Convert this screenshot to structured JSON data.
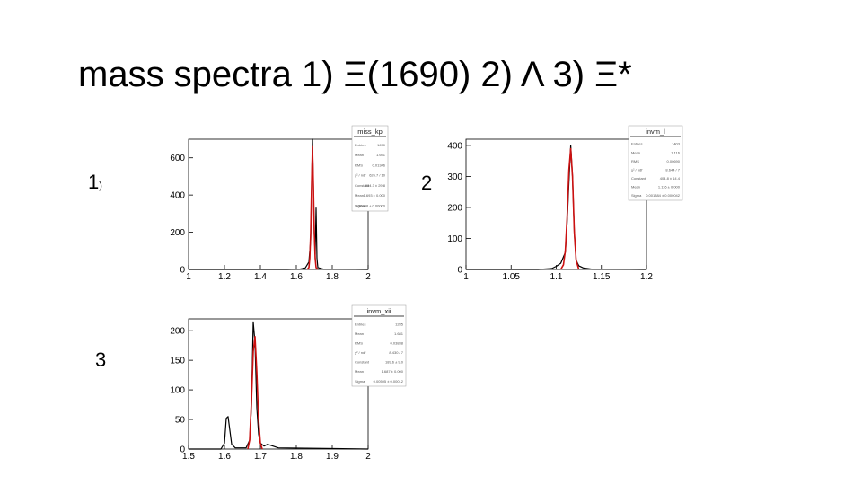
{
  "slide": {
    "title": "mass spectra 1) Ξ(1690) 2) Λ 3) Ξ*",
    "panel_labels": {
      "p1": "1",
      "p1_suffix": ")",
      "p2": "2",
      "p3": "3"
    }
  },
  "colors": {
    "histogram": "#000000",
    "fit": "#cc1111",
    "axis": "#000000",
    "stats_text": "#555555"
  },
  "chart_data": [
    {
      "type": "line",
      "title": "miss_kp",
      "xlim": [
        1,
        2
      ],
      "ylim": [
        0,
        700
      ],
      "xticks": [
        1,
        1.2,
        1.4,
        1.6,
        1.8,
        2
      ],
      "yticks": [
        0,
        200,
        400,
        600
      ],
      "series": [
        {
          "x": [
            1,
            1.55,
            1.62,
            1.65,
            1.67,
            1.68,
            1.685,
            1.69,
            1.695,
            1.7,
            1.705,
            1.71,
            1.715,
            1.72,
            1.75,
            2
          ],
          "y": [
            0,
            0,
            2,
            8,
            40,
            160,
            420,
            700,
            440,
            190,
            80,
            330,
            60,
            10,
            2,
            0
          ]
        },
        {
          "x": [
            1.66,
            1.67,
            1.675,
            1.68,
            1.685,
            1.69,
            1.695,
            1.7,
            1.705,
            1.71,
            1.72
          ],
          "y": [
            0,
            10,
            60,
            200,
            450,
            660,
            450,
            200,
            60,
            10,
            0
          ]
        }
      ],
      "stats_box": {
        "name": "miss_kp",
        "rows": [
          [
            "Entries",
            "1670"
          ],
          [
            "Mean",
            "1.691"
          ],
          [
            "RMS",
            "0.01346"
          ],
          [
            "χ² / ndf",
            "626.7 / 10"
          ],
          [
            "Constant",
            "804.3 ± 29.8"
          ],
          [
            "Mean",
            "1.693 ± 0.000"
          ],
          [
            "Sigma",
            "0.00448 ± 0.00000"
          ]
        ]
      }
    },
    {
      "type": "line",
      "title": "invm_l",
      "xlim": [
        1,
        1.2
      ],
      "ylim": [
        0,
        420
      ],
      "xticks": [
        1,
        1.05,
        1.1,
        1.15,
        1.2
      ],
      "xticklabels": [
        "1",
        "1.05",
        "1.1",
        "1.15",
        "1.2"
      ],
      "yticks": [
        0,
        100,
        200,
        300,
        400
      ],
      "series": [
        {
          "x": [
            1,
            1.08,
            1.095,
            1.1,
            1.105,
            1.11,
            1.112,
            1.114,
            1.116,
            1.118,
            1.12,
            1.122,
            1.125,
            1.13,
            1.14,
            1.2
          ],
          "y": [
            0,
            0,
            3,
            10,
            20,
            55,
            150,
            280,
            400,
            300,
            120,
            30,
            12,
            5,
            1,
            0
          ]
        },
        {
          "x": [
            1.105,
            1.108,
            1.11,
            1.112,
            1.114,
            1.116,
            1.118,
            1.12,
            1.122,
            1.125
          ],
          "y": [
            0,
            15,
            60,
            170,
            320,
            390,
            300,
            120,
            30,
            0
          ]
        }
      ],
      "stats_box": {
        "name": "invm_l",
        "rows": [
          [
            "Entries",
            "1403"
          ],
          [
            "Mean",
            "1.116"
          ],
          [
            "RMS",
            "0.00690"
          ],
          [
            "χ² / ndf",
            "8.644 / 7"
          ],
          [
            "Constant",
            "404.8 ± 14.4"
          ],
          [
            "Mean",
            "1.116 ± 0.000"
          ],
          [
            "Sigma",
            "0.001384 ± 0.000042"
          ]
        ]
      }
    },
    {
      "type": "line",
      "title": "invm_xii",
      "xlim": [
        1.5,
        2
      ],
      "ylim": [
        0,
        220
      ],
      "xticks": [
        1.5,
        1.6,
        1.7,
        1.8,
        1.9,
        2
      ],
      "yticks": [
        0,
        50,
        100,
        150,
        200
      ],
      "series": [
        {
          "x": [
            1.5,
            1.59,
            1.6,
            1.605,
            1.61,
            1.62,
            1.63,
            1.66,
            1.67,
            1.675,
            1.68,
            1.685,
            1.69,
            1.695,
            1.7,
            1.71,
            1.72,
            1.75,
            2
          ],
          "y": [
            0,
            0,
            10,
            52,
            55,
            8,
            2,
            2,
            15,
            70,
            215,
            180,
            70,
            25,
            10,
            5,
            8,
            2,
            0
          ]
        },
        {
          "x": [
            1.665,
            1.67,
            1.675,
            1.68,
            1.685,
            1.69,
            1.695,
            1.7,
            1.705
          ],
          "y": [
            0,
            15,
            80,
            165,
            190,
            130,
            50,
            10,
            0
          ]
        }
      ],
      "stats_box": {
        "name": "invm_xii",
        "rows": [
          [
            "Entries",
            "1285"
          ],
          [
            "Mean",
            "1.681"
          ],
          [
            "RMS",
            "0.03838"
          ],
          [
            "χ² / ndf",
            "8.430 / 7"
          ],
          [
            "Constant",
            "189.6 ± 9.0"
          ],
          [
            "Mean",
            "1.687 ± 0.000"
          ],
          [
            "Sigma",
            "0.00595 ± 0.00012"
          ]
        ]
      }
    }
  ]
}
